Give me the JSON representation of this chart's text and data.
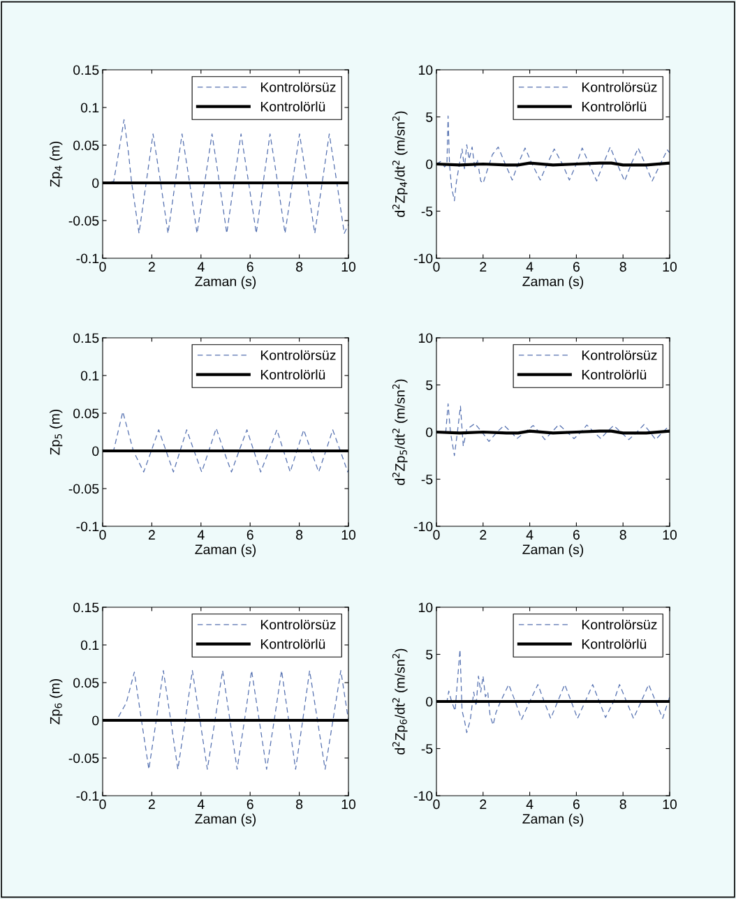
{
  "chart_data": [
    {
      "type": "line",
      "xlabel": "Zaman (s)",
      "ylabel": "Zp$_{4}$ (m)",
      "xlim": [
        0,
        10
      ],
      "ylim": [
        -0.1,
        0.15
      ],
      "xticks": [
        0,
        2,
        4,
        6,
        8,
        10
      ],
      "yticks": [
        -0.1,
        -0.05,
        0,
        0.05,
        0.1,
        0.15
      ],
      "legend": "top right",
      "grid": false,
      "series": [
        {
          "name": "Kontrolörsüz",
          "color": "#5470b0",
          "line_style": "dashed",
          "x": [
            0,
            0.45,
            0.65,
            0.87,
            1.05,
            1.18,
            1.48,
            1.77,
            2.05,
            2.36,
            2.66,
            2.95,
            3.23,
            3.54,
            3.84,
            4.15,
            4.45,
            4.75,
            5.05,
            5.34,
            5.63,
            5.94,
            6.25,
            6.53,
            6.81,
            7.12,
            7.42,
            7.72,
            8.01,
            8.32,
            8.63,
            8.93,
            9.22,
            9.53,
            9.83,
            10
          ],
          "values": [
            0,
            0.002,
            0.04,
            0.084,
            0.04,
            0,
            -0.067,
            0,
            0.065,
            0,
            -0.067,
            0,
            0.065,
            0,
            -0.067,
            0,
            0.065,
            0,
            -0.067,
            0,
            0.065,
            0,
            -0.067,
            0,
            0.065,
            0,
            -0.067,
            0,
            0.065,
            0,
            -0.067,
            0,
            0.065,
            0,
            -0.067,
            -0.055
          ]
        },
        {
          "name": "Kontrolörlü",
          "color": "#000000",
          "line_style": "solid",
          "x": [
            0,
            10
          ],
          "values": [
            0,
            0
          ]
        }
      ]
    },
    {
      "type": "line",
      "xlabel": "Zaman (s)",
      "ylabel": "d$^{2}$Zp$_{4}$/dt$^{2}$ (m/sn$^{2}$)",
      "xlim": [
        0,
        10
      ],
      "ylim": [
        -10,
        10
      ],
      "xticks": [
        0,
        2,
        4,
        6,
        8,
        10
      ],
      "yticks": [
        -10,
        -5,
        0,
        5,
        10
      ],
      "legend": "top right",
      "grid": false,
      "series": [
        {
          "name": "Kontrolörsüz",
          "color": "#5470b0",
          "line_style": "dashed",
          "x": [
            0,
            0.2,
            0.35,
            0.45,
            0.5,
            0.56,
            0.65,
            0.77,
            0.85,
            0.95,
            1.1,
            1.2,
            1.3,
            1.4,
            1.53,
            1.65,
            1.75,
            1.9,
            2.0,
            2.2,
            2.4,
            2.65,
            2.95,
            3.25,
            3.5,
            3.8,
            4.1,
            4.45,
            4.75,
            5.05,
            5.4,
            5.7,
            6.0,
            6.25,
            6.55,
            6.87,
            7.15,
            7.45,
            7.75,
            8.07,
            8.35,
            8.65,
            8.95,
            9.25,
            9.6,
            9.9,
            10
          ],
          "values": [
            0,
            0.3,
            -0.3,
            0,
            5.1,
            0,
            -2.5,
            -3.9,
            -2.0,
            -0.5,
            1.6,
            -0.5,
            2.05,
            0.5,
            1.8,
            -0.5,
            0.5,
            -1.8,
            -2.05,
            -0.5,
            1.0,
            1.8,
            0,
            -1.7,
            0,
            1.7,
            0,
            -1.7,
            0,
            1.6,
            0,
            -1.7,
            0,
            1.7,
            0,
            -1.8,
            0,
            1.8,
            0,
            -1.8,
            0,
            1.7,
            0,
            -1.8,
            0,
            1.5,
            1.2
          ]
        },
        {
          "name": "Kontrolörlü",
          "color": "#000000",
          "line_style": "solid",
          "x": [
            0,
            1,
            2,
            3,
            3.5,
            4,
            5,
            6,
            7,
            7.5,
            8,
            9,
            10
          ],
          "values": [
            0,
            -0.1,
            0,
            -0.1,
            -0.1,
            0.1,
            -0.1,
            0,
            0.1,
            0.1,
            -0.1,
            -0.1,
            0.1
          ]
        }
      ]
    },
    {
      "type": "line",
      "xlabel": "Zaman (s)",
      "ylabel": "Zp$_{5}$ (m)",
      "xlim": [
        0,
        10
      ],
      "ylim": [
        -0.1,
        0.15
      ],
      "xticks": [
        0,
        2,
        4,
        6,
        8,
        10
      ],
      "yticks": [
        -0.1,
        -0.05,
        0,
        0.05,
        0.1,
        0.15
      ],
      "legend": "top right",
      "grid": false,
      "series": [
        {
          "name": "Kontrolörsüz",
          "color": "#5470b0",
          "line_style": "dashed",
          "x": [
            0,
            0.45,
            0.82,
            1.25,
            1.67,
            1.98,
            2.28,
            2.58,
            2.88,
            3.15,
            3.42,
            3.72,
            4.03,
            4.32,
            4.62,
            4.93,
            5.24,
            5.55,
            5.87,
            6.15,
            6.43,
            6.76,
            7.09,
            7.36,
            7.63,
            7.9,
            8.18,
            8.48,
            8.79,
            9.08,
            9.36,
            9.67,
            9.97,
            10
          ],
          "values": [
            0,
            0.001,
            0.052,
            0,
            -0.028,
            0,
            0.028,
            0,
            -0.028,
            0,
            0.028,
            0,
            -0.028,
            0,
            0.03,
            0,
            -0.028,
            0,
            0.028,
            0,
            -0.028,
            0,
            0.028,
            0,
            -0.028,
            0,
            0.028,
            0,
            -0.028,
            0,
            0.028,
            0,
            -0.028,
            -0.025
          ]
        },
        {
          "name": "Kontrolörlü",
          "color": "#000000",
          "line_style": "solid",
          "x": [
            0,
            10
          ],
          "values": [
            0,
            0
          ]
        }
      ]
    },
    {
      "type": "line",
      "xlabel": "Zaman (s)",
      "ylabel": "d$^{2}$Zp$_{5}$/dt$^{2}$ (m/sn$^{2}$)",
      "xlim": [
        0,
        10
      ],
      "ylim": [
        -10,
        10
      ],
      "xticks": [
        0,
        2,
        4,
        6,
        8,
        10
      ],
      "yticks": [
        -10,
        -5,
        0,
        5,
        10
      ],
      "legend": "top right",
      "grid": false,
      "series": [
        {
          "name": "Kontrolörsüz",
          "color": "#5470b0",
          "line_style": "dashed",
          "x": [
            0,
            0.4,
            0.5,
            0.6,
            0.77,
            0.9,
            1.03,
            1.15,
            1.3,
            1.65,
            1.95,
            2.25,
            2.6,
            2.9,
            3.2,
            3.45,
            3.8,
            4.15,
            4.4,
            4.65,
            4.95,
            5.25,
            5.6,
            5.9,
            6.2,
            6.45,
            6.75,
            7.05,
            7.3,
            7.6,
            7.9,
            8.25,
            8.6,
            8.9,
            9.15,
            9.4,
            9.7,
            10
          ],
          "values": [
            0,
            0,
            3.0,
            0,
            -2.5,
            0,
            2.75,
            -1.5,
            0.3,
            0.9,
            0,
            -1.0,
            0,
            0.7,
            0,
            -0.7,
            0,
            0.7,
            0,
            -0.8,
            0,
            0.8,
            0,
            -0.7,
            0,
            0.75,
            0,
            -0.7,
            0,
            0.7,
            0,
            -0.8,
            0,
            0.8,
            0,
            -0.8,
            0,
            0.7
          ]
        },
        {
          "name": "Kontrolörlü",
          "color": "#000000",
          "line_style": "solid",
          "x": [
            0,
            1,
            2,
            3,
            3.5,
            4,
            5,
            6,
            7,
            7.5,
            8,
            9,
            10
          ],
          "values": [
            0,
            -0.1,
            0,
            -0.1,
            -0.1,
            0.1,
            -0.1,
            0,
            0.1,
            0.1,
            -0.1,
            -0.1,
            0.1
          ]
        }
      ]
    },
    {
      "type": "line",
      "xlabel": "Zaman (s)",
      "ylabel": "Zp$_{6}$ (m)",
      "xlim": [
        0,
        10
      ],
      "ylim": [
        -0.1,
        0.15
      ],
      "xticks": [
        0,
        2,
        4,
        6,
        8,
        10
      ],
      "yticks": [
        -0.1,
        -0.05,
        0,
        0.05,
        0.1,
        0.15
      ],
      "legend": "top right",
      "grid": false,
      "series": [
        {
          "name": "Kontrolörsüz",
          "color": "#5470b0",
          "line_style": "dashed",
          "x": [
            0,
            0.58,
            0.96,
            1.29,
            1.58,
            1.88,
            2.18,
            2.47,
            2.77,
            3.06,
            3.36,
            3.65,
            3.96,
            4.26,
            4.57,
            4.88,
            5.18,
            5.47,
            5.77,
            6.06,
            6.37,
            6.67,
            6.98,
            7.28,
            7.57,
            7.85,
            8.14,
            8.42,
            8.74,
            9.05,
            9.37,
            9.69,
            10
          ],
          "values": [
            0,
            0.001,
            0.023,
            0.064,
            0,
            -0.065,
            0,
            0.066,
            0,
            -0.065,
            0,
            0.066,
            0,
            -0.065,
            0,
            0.066,
            0,
            -0.065,
            0,
            0.066,
            0,
            -0.065,
            0,
            0.066,
            0,
            -0.065,
            0,
            0.066,
            0,
            -0.065,
            0,
            0.066,
            0
          ]
        },
        {
          "name": "Kontrolörlü",
          "color": "#000000",
          "line_style": "solid",
          "x": [
            0,
            10
          ],
          "values": [
            0,
            0
          ]
        }
      ]
    },
    {
      "type": "line",
      "xlabel": "Zaman (s)",
      "ylabel": "d$^{2}$Zp$_{6}$/dt$^{2}$ (m/sn$^{2}$)",
      "xlim": [
        0,
        10
      ],
      "ylim": [
        -10,
        10
      ],
      "xticks": [
        0,
        2,
        4,
        6,
        8,
        10
      ],
      "yticks": [
        -10,
        -5,
        0,
        5,
        10
      ],
      "legend": "top right",
      "grid": false,
      "series": [
        {
          "name": "Kontrolörsüz",
          "color": "#5470b0",
          "line_style": "dashed",
          "x": [
            0,
            0.45,
            0.53,
            0.65,
            0.8,
            1.01,
            1.1,
            1.2,
            1.3,
            1.45,
            1.6,
            1.7,
            1.8,
            1.9,
            2.0,
            2.1,
            2.2,
            2.3,
            2.43,
            2.55,
            2.75,
            3.1,
            3.38,
            3.65,
            4.0,
            4.35,
            4.62,
            4.9,
            5.2,
            5.5,
            5.78,
            6.05,
            6.38,
            6.7,
            6.98,
            7.25,
            7.6,
            7.85,
            8.15,
            8.45,
            8.78,
            9.1,
            9.4,
            9.7,
            10
          ],
          "values": [
            0,
            0,
            1.1,
            0,
            -1.0,
            5.5,
            -1.0,
            -2.0,
            -3.3,
            -2.0,
            1.0,
            -0.5,
            2.7,
            1.0,
            2.7,
            0.5,
            1.0,
            -1.5,
            -2.5,
            -1.2,
            0,
            1.8,
            0,
            -1.9,
            0,
            1.8,
            0,
            -1.8,
            0,
            1.8,
            0,
            -1.8,
            0,
            1.8,
            0,
            -1.7,
            0,
            1.8,
            0,
            -1.8,
            0,
            1.8,
            0,
            -1.8,
            0.5
          ]
        },
        {
          "name": "Kontrolörlü",
          "color": "#000000",
          "line_style": "solid",
          "x": [
            0,
            10
          ],
          "values": [
            0,
            0
          ]
        }
      ]
    }
  ]
}
